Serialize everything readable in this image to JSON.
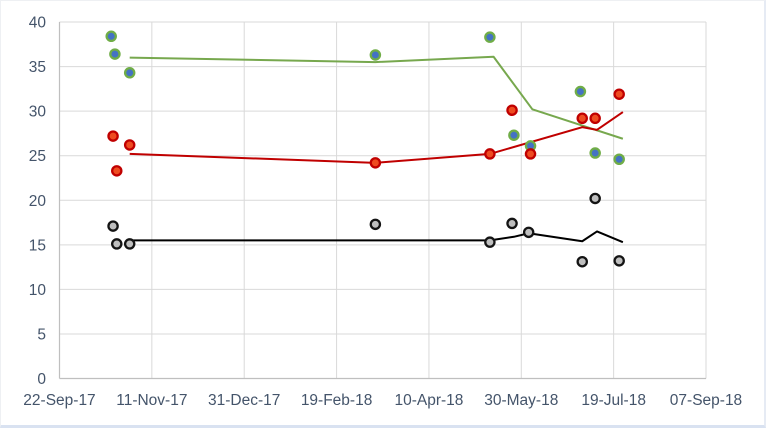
{
  "window": {
    "background": "#ffffff",
    "frame_edge_color": "#d9e2f1"
  },
  "chart_data": {
    "type": "scatter",
    "title": "",
    "xlabel": "",
    "ylabel": "",
    "grid": true,
    "legend": "none",
    "x_axis": {
      "type": "date",
      "min": "2017-09-22",
      "max": "2018-09-07",
      "tick_labels": [
        "22-Sep-17",
        "11-Nov-17",
        "31-Dec-17",
        "19-Feb-18",
        "10-Apr-18",
        "30-May-18",
        "19-Jul-18",
        "07-Sep-18"
      ]
    },
    "y_axis": {
      "min": 0,
      "max": 40,
      "step": 5,
      "tick_labels": [
        "0",
        "5",
        "10",
        "15",
        "20",
        "25",
        "30",
        "35",
        "40"
      ]
    },
    "style": {
      "gridline_color": "#d9d9d9",
      "axis_line_color": "#bfbfbf",
      "tick_label_color": "#44546a",
      "tick_font_px": 15.5,
      "marker_radius": 4.6,
      "marker_stroke_width": 2.3,
      "line_width": 2
    },
    "scatter_series": [
      {
        "name": "blue-dots-green-ring",
        "fill": "#4472c4",
        "stroke": "#70ad47",
        "points": [
          {
            "date": "2017-10-20",
            "value": 38.4
          },
          {
            "date": "2017-10-22",
            "value": 36.4
          },
          {
            "date": "2017-10-30",
            "value": 34.3
          },
          {
            "date": "2018-03-12",
            "value": 36.3
          },
          {
            "date": "2018-05-13",
            "value": 38.3
          },
          {
            "date": "2018-05-26",
            "value": 27.3
          },
          {
            "date": "2018-06-04",
            "value": 26.1
          },
          {
            "date": "2018-07-01",
            "value": 32.2
          },
          {
            "date": "2018-07-09",
            "value": 25.3
          },
          {
            "date": "2018-07-22",
            "value": 24.6
          }
        ]
      },
      {
        "name": "orange-dots-red-ring",
        "fill": "#ee4c21",
        "stroke": "#c00000",
        "points": [
          {
            "date": "2017-10-21",
            "value": 27.2
          },
          {
            "date": "2017-10-30",
            "value": 26.2
          },
          {
            "date": "2017-10-23",
            "value": 23.3
          },
          {
            "date": "2018-03-12",
            "value": 24.2
          },
          {
            "date": "2018-05-25",
            "value": 30.1
          },
          {
            "date": "2018-05-13",
            "value": 25.2
          },
          {
            "date": "2018-06-04",
            "value": 25.2
          },
          {
            "date": "2018-07-02",
            "value": 29.2
          },
          {
            "date": "2018-07-09",
            "value": 29.2
          },
          {
            "date": "2018-07-22",
            "value": 31.9
          }
        ]
      },
      {
        "name": "gray-dots-black-ring",
        "fill": "#bfbfbf",
        "stroke": "#141414",
        "points": [
          {
            "date": "2017-10-21",
            "value": 17.1
          },
          {
            "date": "2017-10-23",
            "value": 15.1
          },
          {
            "date": "2017-10-30",
            "value": 15.1
          },
          {
            "date": "2018-03-12",
            "value": 17.3
          },
          {
            "date": "2018-05-13",
            "value": 15.3
          },
          {
            "date": "2018-05-25",
            "value": 17.4
          },
          {
            "date": "2018-06-03",
            "value": 16.4
          },
          {
            "date": "2018-07-09",
            "value": 20.2
          },
          {
            "date": "2018-07-02",
            "value": 13.1
          },
          {
            "date": "2018-07-22",
            "value": 13.2
          }
        ]
      }
    ],
    "line_series": [
      {
        "name": "green-trend-line",
        "color": "#77a84e",
        "points": [
          {
            "date": "2017-10-30",
            "value": 36.0
          },
          {
            "date": "2018-03-12",
            "value": 35.5
          },
          {
            "date": "2018-05-15",
            "value": 36.1
          },
          {
            "date": "2018-06-05",
            "value": 30.2
          },
          {
            "date": "2018-07-24",
            "value": 26.9
          }
        ]
      },
      {
        "name": "red-trend-line",
        "color": "#c00000",
        "points": [
          {
            "date": "2017-10-30",
            "value": 25.2
          },
          {
            "date": "2018-03-12",
            "value": 24.2
          },
          {
            "date": "2018-05-13",
            "value": 25.2
          },
          {
            "date": "2018-07-02",
            "value": 28.2
          },
          {
            "date": "2018-07-10",
            "value": 27.9
          },
          {
            "date": "2018-07-24",
            "value": 29.9
          }
        ]
      },
      {
        "name": "black-trend-line",
        "color": "#000000",
        "points": [
          {
            "date": "2017-10-30",
            "value": 15.5
          },
          {
            "date": "2018-03-12",
            "value": 15.5
          },
          {
            "date": "2018-05-13",
            "value": 15.5
          },
          {
            "date": "2018-05-26",
            "value": 15.9
          },
          {
            "date": "2018-06-03",
            "value": 16.3
          },
          {
            "date": "2018-07-02",
            "value": 15.4
          },
          {
            "date": "2018-07-10",
            "value": 16.5
          },
          {
            "date": "2018-07-24",
            "value": 15.3
          }
        ]
      }
    ]
  }
}
